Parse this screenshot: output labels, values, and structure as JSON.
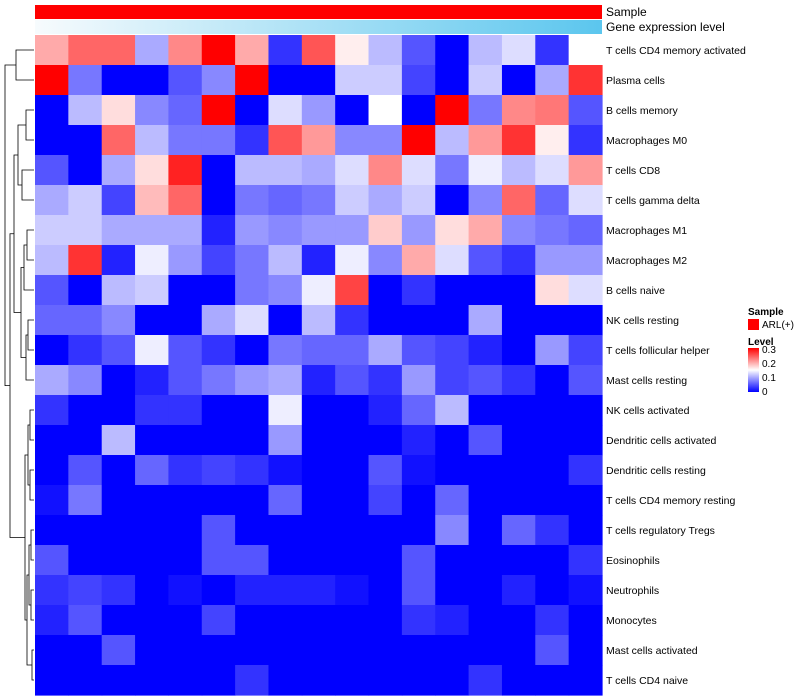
{
  "chart_data": {
    "type": "heatmap",
    "title": "",
    "annotation_tracks": [
      {
        "label": "Sample",
        "color": "#ff0000"
      },
      {
        "label": "Gene expression level",
        "gradient": [
          "#f7fbfd",
          "#5bc6ee"
        ]
      }
    ],
    "rows": [
      "T cells CD4 memory activated",
      "Plasma cells",
      "B cells memory",
      "Macrophages M0",
      "T cells CD8",
      "T cells gamma delta",
      "Macrophages M1",
      "Macrophages M2",
      "B cells naive",
      "NK cells resting",
      "T cells follicular helper",
      "Mast cells resting",
      "NK cells activated",
      "Dendritic cells activated",
      "Dendritic cells resting",
      "T cells CD4 memory resting",
      "T cells regulatory  Tregs",
      "Eosinophils",
      "Neutrophils",
      "Monocytes",
      "Mast cells activated",
      "T cells CD4 naive"
    ],
    "column_count": 17,
    "values": [
      [
        0.2,
        0.24,
        0.24,
        0.1,
        0.22,
        0.3,
        0.2,
        0.03,
        0.25,
        0.16,
        0.11,
        0.05,
        0.0,
        0.11,
        0.13,
        0.03,
        0.15
      ],
      [
        0.3,
        0.07,
        0.0,
        0.0,
        0.05,
        0.08,
        0.3,
        0.0,
        0.0,
        0.12,
        0.12,
        0.04,
        0.0,
        0.12,
        0.0,
        0.1,
        0.27
      ],
      [
        0.0,
        0.11,
        0.17,
        0.08,
        0.06,
        0.3,
        0.0,
        0.13,
        0.09,
        0.0,
        0.15,
        0.0,
        0.3,
        0.07,
        0.22,
        0.23,
        0.05
      ],
      [
        0.0,
        0.0,
        0.24,
        0.11,
        0.07,
        0.07,
        0.03,
        0.25,
        0.21,
        0.08,
        0.08,
        0.3,
        0.11,
        0.21,
        0.27,
        0.16,
        0.03
      ],
      [
        0.05,
        0.0,
        0.1,
        0.17,
        0.28,
        0.0,
        0.11,
        0.11,
        0.1,
        0.13,
        0.22,
        0.13,
        0.07,
        0.14,
        0.11,
        0.13,
        0.21
      ],
      [
        0.1,
        0.12,
        0.04,
        0.19,
        0.24,
        0.0,
        0.07,
        0.06,
        0.07,
        0.12,
        0.1,
        0.12,
        0.0,
        0.08,
        0.24,
        0.06,
        0.13
      ],
      [
        0.12,
        0.12,
        0.1,
        0.1,
        0.1,
        0.02,
        0.09,
        0.08,
        0.09,
        0.09,
        0.18,
        0.09,
        0.17,
        0.2,
        0.08,
        0.07,
        0.06
      ],
      [
        0.11,
        0.27,
        0.02,
        0.14,
        0.09,
        0.04,
        0.07,
        0.11,
        0.02,
        0.14,
        0.08,
        0.2,
        0.13,
        0.05,
        0.03,
        0.09,
        0.09
      ],
      [
        0.05,
        0.0,
        0.11,
        0.12,
        0.0,
        0.0,
        0.07,
        0.08,
        0.14,
        0.26,
        0.0,
        0.03,
        0.0,
        0.0,
        0.0,
        0.17,
        0.13
      ],
      [
        0.06,
        0.06,
        0.08,
        0.0,
        0.0,
        0.1,
        0.13,
        0.0,
        0.11,
        0.03,
        0.0,
        0.0,
        0.0,
        0.1,
        0.0,
        0.0,
        0.0
      ],
      [
        0.0,
        0.03,
        0.05,
        0.14,
        0.05,
        0.03,
        0.0,
        0.07,
        0.06,
        0.06,
        0.1,
        0.05,
        0.04,
        0.02,
        0.0,
        0.09,
        0.04
      ],
      [
        0.1,
        0.08,
        0.0,
        0.02,
        0.05,
        0.07,
        0.09,
        0.1,
        0.02,
        0.05,
        0.03,
        0.09,
        0.04,
        0.05,
        0.03,
        0.0,
        0.05
      ],
      [
        0.03,
        0.0,
        0.0,
        0.03,
        0.03,
        0.0,
        0.0,
        0.14,
        0.0,
        0.0,
        0.02,
        0.06,
        0.11,
        0.0,
        0.0,
        0.0,
        0.0
      ],
      [
        0.0,
        0.0,
        0.11,
        0.0,
        0.0,
        0.0,
        0.0,
        0.09,
        0.0,
        0.0,
        0.0,
        0.02,
        0.0,
        0.05,
        0.0,
        0.0,
        0.0
      ],
      [
        0.0,
        0.05,
        0.0,
        0.06,
        0.03,
        0.04,
        0.03,
        0.01,
        0.0,
        0.0,
        0.05,
        0.01,
        0.0,
        0.0,
        0.0,
        0.0,
        0.03
      ],
      [
        0.01,
        0.07,
        0.0,
        0.0,
        0.0,
        0.0,
        0.0,
        0.06,
        0.0,
        0.0,
        0.04,
        0.0,
        0.06,
        0.0,
        0.0,
        0.0,
        0.0
      ],
      [
        0.0,
        0.0,
        0.0,
        0.0,
        0.0,
        0.05,
        0.0,
        0.0,
        0.0,
        0.0,
        0.0,
        0.0,
        0.08,
        0.0,
        0.06,
        0.03,
        0.0
      ],
      [
        0.05,
        0.0,
        0.0,
        0.0,
        0.0,
        0.05,
        0.05,
        0.0,
        0.0,
        0.0,
        0.0,
        0.05,
        0.0,
        0.0,
        0.0,
        0.0,
        0.03
      ],
      [
        0.03,
        0.04,
        0.03,
        0.0,
        0.01,
        0.0,
        0.02,
        0.02,
        0.02,
        0.01,
        0.0,
        0.05,
        0.0,
        0.0,
        0.02,
        0.0,
        0.01
      ],
      [
        0.02,
        0.05,
        0.0,
        0.0,
        0.0,
        0.04,
        0.0,
        0.0,
        0.0,
        0.0,
        0.0,
        0.03,
        0.02,
        0.0,
        0.0,
        0.03,
        0.0
      ],
      [
        0.0,
        0.0,
        0.05,
        0.0,
        0.0,
        0.0,
        0.0,
        0.0,
        0.0,
        0.0,
        0.0,
        0.0,
        0.0,
        0.0,
        0.0,
        0.05,
        0.0
      ],
      [
        0.0,
        0.0,
        0.0,
        0.0,
        0.0,
        0.0,
        0.03,
        0.0,
        0.0,
        0.0,
        0.0,
        0.0,
        0.0,
        0.03,
        0.0,
        0.0,
        0.0
      ]
    ],
    "color_scale": {
      "min": 0,
      "mid": 0.15,
      "max": 0.3,
      "low": "#0000ff",
      "mid_color": "#ffffff",
      "high": "#ff0000"
    },
    "legend": {
      "position": "right",
      "sample_title": "Sample",
      "sample_entries": [
        {
          "label": "ARL(+)",
          "color": "#ff0000"
        }
      ],
      "level_title": "Level",
      "level_ticks": [
        "0.3",
        "0.2",
        "0.1",
        "0"
      ]
    },
    "dendrogram": "rows, left side"
  }
}
